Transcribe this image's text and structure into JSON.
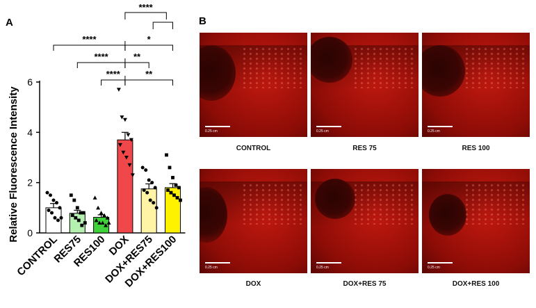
{
  "panel_a_letter": "A",
  "panel_b_letter": "B",
  "chart_data": {
    "type": "bar",
    "ylabel": "Relative Fluorescence Intensity",
    "ylim": [
      0,
      6
    ],
    "yticks": [
      0,
      2,
      4,
      6
    ],
    "categories": [
      "CONTROL",
      "RES75",
      "RES100",
      "DOX",
      "DOX+RES75",
      "DOX+RES100"
    ],
    "values": [
      1.0,
      0.78,
      0.62,
      3.7,
      1.75,
      1.8
    ],
    "errors": [
      0.17,
      0.12,
      0.1,
      0.3,
      0.2,
      0.16
    ],
    "bar_colors": [
      "#ffffff",
      "#b6f0b0",
      "#3fd23a",
      "#f0484a",
      "#fff4a6",
      "#fff200"
    ],
    "markers": [
      "circle",
      "square",
      "triangle",
      "triangle-down",
      "circle",
      "square"
    ],
    "points": [
      [
        1.6,
        1.5,
        1.3,
        1.2,
        1.0,
        0.9,
        0.8,
        0.6,
        0.5,
        0.6
      ],
      [
        1.5,
        1.3,
        1.0,
        0.8,
        0.8,
        0.7,
        0.6,
        0.5,
        0.3,
        0.4
      ],
      [
        1.4,
        1.0,
        0.8,
        0.7,
        0.6,
        0.5,
        0.4,
        0.4,
        0.3,
        0.4
      ],
      [
        5.7,
        4.6,
        4.5,
        3.9,
        3.7,
        3.5,
        3.2,
        3.0,
        2.7,
        2.3
      ],
      [
        2.6,
        2.5,
        2.1,
        2.0,
        1.8,
        1.7,
        1.6,
        1.3,
        1.2,
        1.0
      ],
      [
        3.1,
        2.6,
        2.2,
        1.9,
        1.8,
        1.7,
        1.6,
        1.5,
        1.4,
        1.3
      ]
    ],
    "significance": [
      {
        "from": 0,
        "to": 3,
        "label": "****"
      },
      {
        "from": 1,
        "to": 3,
        "label": "****"
      },
      {
        "from": 2,
        "to": 3,
        "label": "****"
      },
      {
        "from": 3,
        "to": 5,
        "label": "*"
      },
      {
        "from": 3,
        "to": 4,
        "label": "**"
      },
      {
        "from": 3,
        "to": 5,
        "label": "**"
      },
      {
        "from": 3,
        "to": 5,
        "label": "****"
      }
    ]
  },
  "images": [
    {
      "label": "CONTROL",
      "scale": "0.25 cm"
    },
    {
      "label": "RES 75",
      "scale": "0.25 cm"
    },
    {
      "label": "RES 100",
      "scale": "0.25 cm"
    },
    {
      "label": "DOX",
      "scale": "0.25 cm"
    },
    {
      "label": "DOX+RES 75",
      "scale": "0.25 cm"
    },
    {
      "label": "DOX+RES 100",
      "scale": "0.25 cm"
    }
  ]
}
